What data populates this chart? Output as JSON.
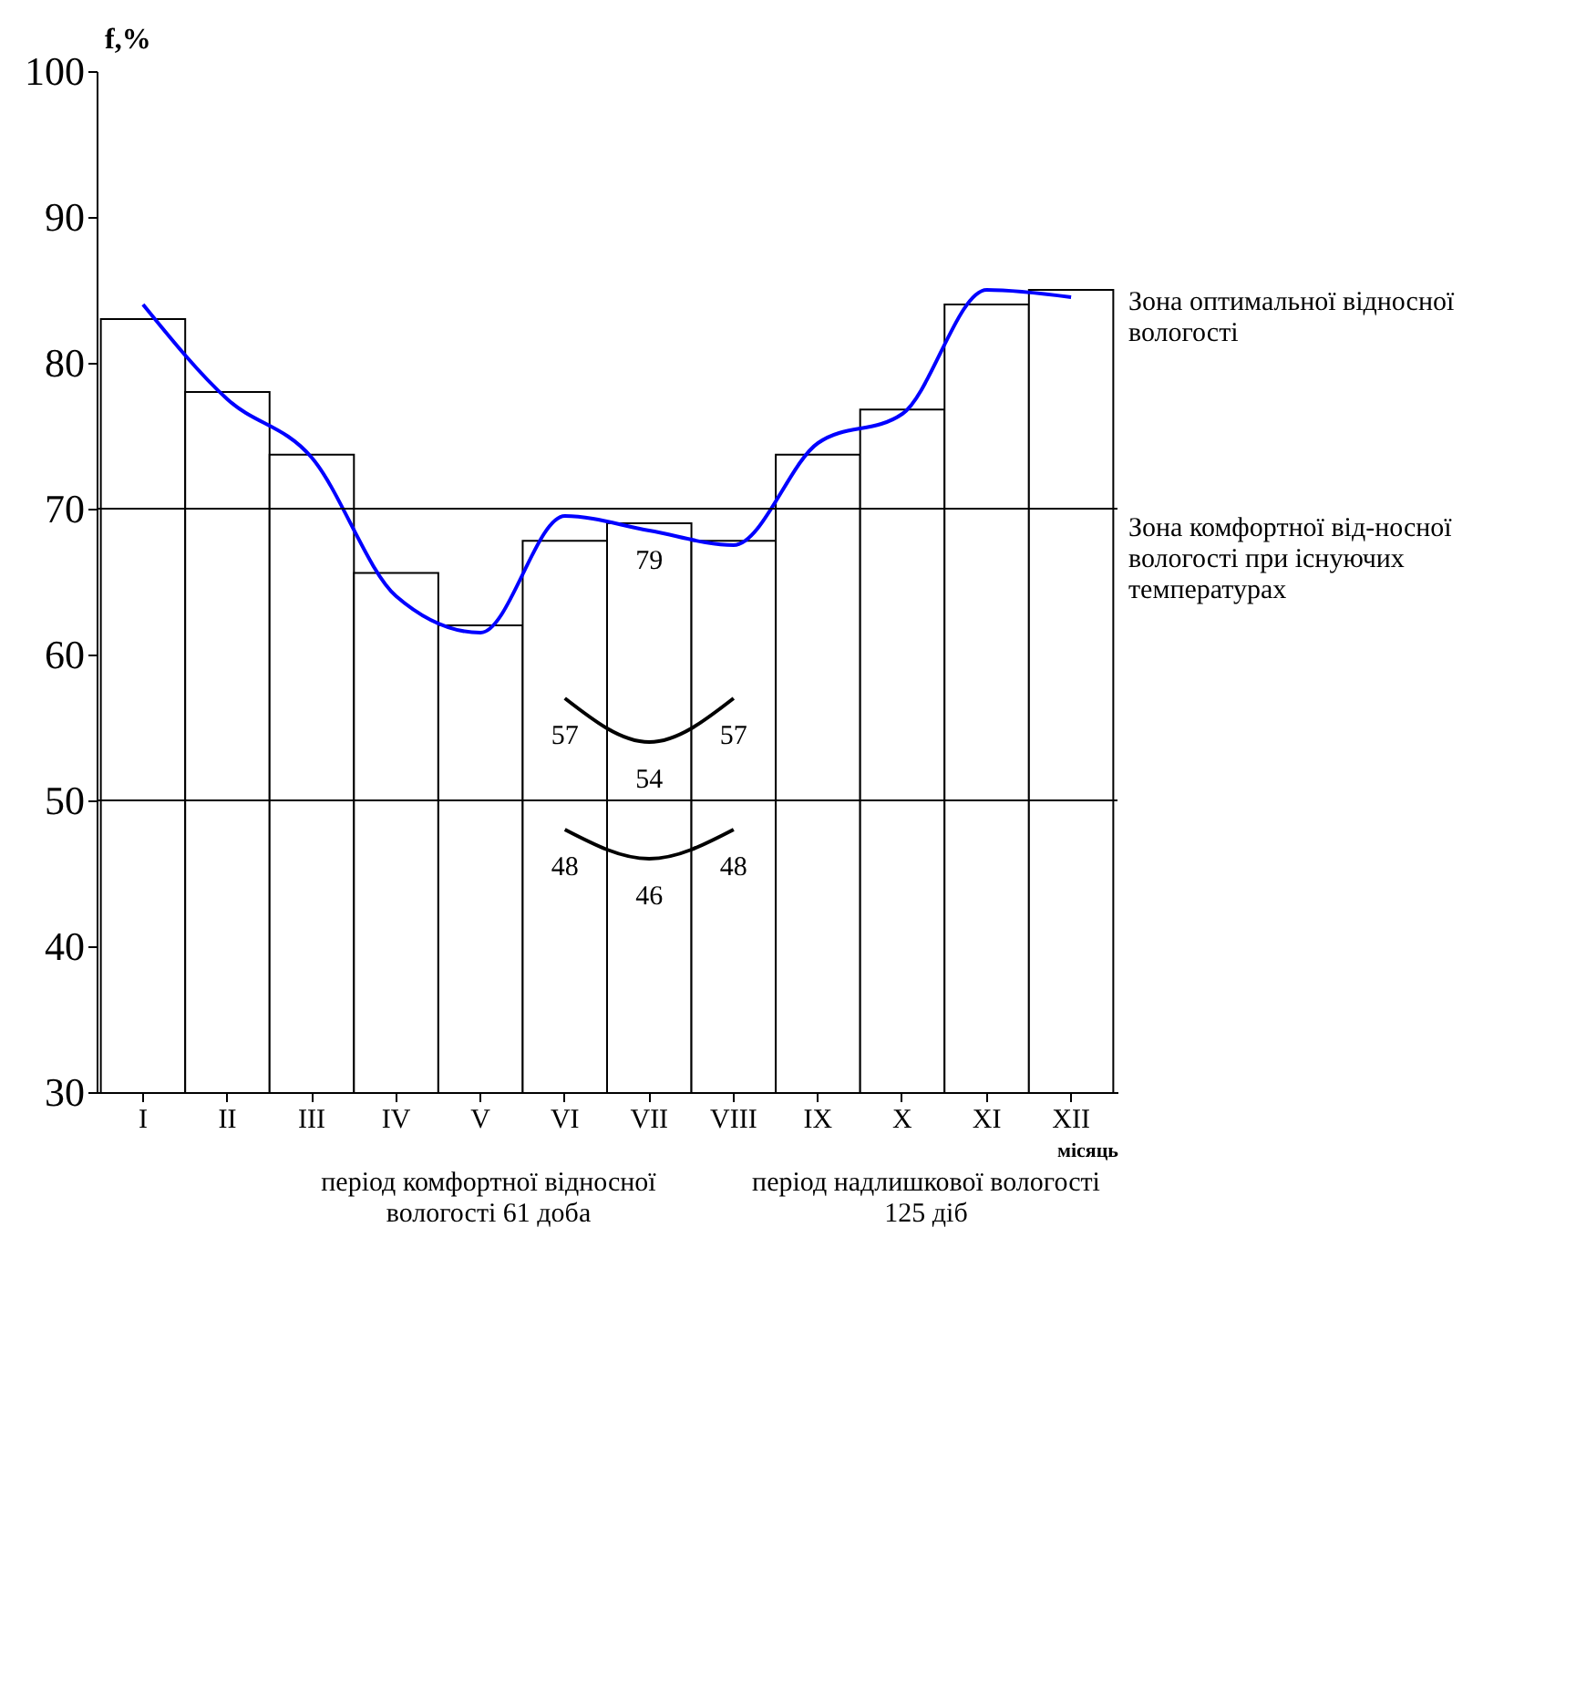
{
  "chart_data": {
    "type": "bar",
    "categories": [
      "I",
      "II",
      "III",
      "IV",
      "V",
      "VI",
      "VII",
      "VIII",
      "IX",
      "X",
      "XI",
      "XII"
    ],
    "xlabel": "місяць",
    "ylabel": "f,%",
    "ylim": [
      30,
      100
    ],
    "yticks": [
      30,
      40,
      50,
      60,
      70,
      80,
      90,
      100
    ],
    "grid": false,
    "series": [
      {
        "color": "#ffffff",
        "values": [
          83,
          78,
          73.7,
          65.6,
          62,
          67.8,
          69,
          67.8,
          73.7,
          76.8,
          84,
          85
        ]
      },
      {
        "type": "line",
        "color": "#0000ff",
        "values": [
          84,
          77.5,
          73.5,
          64,
          61.5,
          69.5,
          68.5,
          67.5,
          74.5,
          76.5,
          85,
          84.5
        ]
      },
      {
        "type": "line",
        "color": "#000000",
        "x": [
          "VI",
          "VII",
          "VIII"
        ],
        "values": [
          57,
          54,
          57
        ]
      },
      {
        "type": "line",
        "color": "#000000",
        "x": [
          "VI",
          "VII",
          "VIII"
        ],
        "values": [
          48,
          46,
          48
        ]
      }
    ],
    "ref_lines": [
      {
        "axis": "y",
        "value": 70,
        "color": "#000000"
      },
      {
        "axis": "y",
        "value": 50,
        "color": "#000000"
      }
    ],
    "annotations": [
      {
        "text": "79",
        "x": "VII",
        "y": 69
      },
      {
        "text": "57",
        "x": "VI",
        "y": 57
      },
      {
        "text": "54",
        "x": "VII",
        "y": 54
      },
      {
        "text": "57",
        "x": "VIII",
        "y": 57
      },
      {
        "text": "48",
        "x": "VI",
        "y": 48
      },
      {
        "text": "46",
        "x": "VII",
        "y": 46
      },
      {
        "text": "48",
        "x": "VIII",
        "y": 48
      },
      "Зона оптимальної відносної вологості",
      "Зона комфортної від-носної вологості при існуючих температурах",
      "період комфортної відносної вологості 61 доба",
      "період надлишкової вологості 125 діб"
    ]
  }
}
